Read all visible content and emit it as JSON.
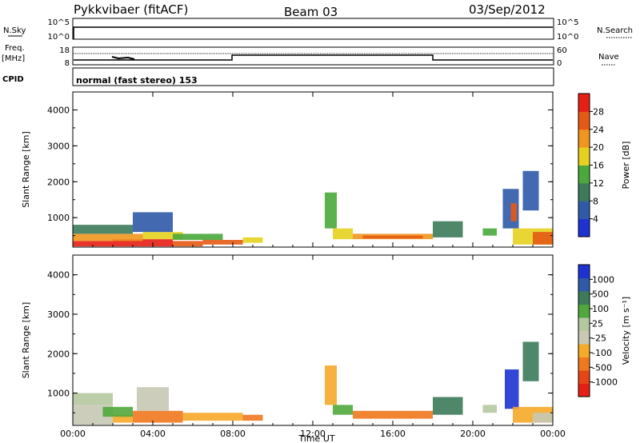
{
  "header": {
    "station": "Pykkvibaer (fitACF)",
    "beam": "Beam 03",
    "date": "03/Sep/2012"
  },
  "top_panels": {
    "nsky_label": "N.Sky",
    "nsearch_label": "N.Search",
    "freq_label_1": "Freq.",
    "freq_label_2": "[MHz]",
    "nave_label": "Nave",
    "cpid_label": "CPID",
    "cpid_text": "normal (fast stereo) 153",
    "noise_left_ticks": [
      "10^5",
      "10^0"
    ],
    "noise_right_ticks": [
      "10^5",
      "10^0"
    ],
    "freq_left_ticks": [
      "18",
      "8"
    ],
    "freq_right_ticks": [
      "60",
      "0"
    ]
  },
  "colors": {
    "power": [
      "#1e32d2",
      "#2f5aa8",
      "#3c7a5a",
      "#4aa83c",
      "#e6d21e",
      "#f0961e",
      "#e65a14",
      "#e61e14"
    ],
    "velocity": [
      "#e61e14",
      "#e64614",
      "#f0781e",
      "#f5aa28",
      "#c8c8b4",
      "#b4c8a0",
      "#50a83c",
      "#3c7a5a",
      "#2f5aa8",
      "#1e32d2"
    ]
  },
  "chart_data": [
    {
      "type": "heatmap",
      "name": "power",
      "ylabel": "Slant Range [km]",
      "xlabel": "",
      "ylim": [
        180,
        4500
      ],
      "xlim": [
        0,
        24
      ],
      "x_ticks": [
        "00:00",
        "04:00",
        "08:00",
        "12:00",
        "16:00",
        "20:00",
        "00:00"
      ],
      "y_ticks": [
        "1000",
        "2000",
        "3000",
        "4000"
      ],
      "colorbar_label": "Power [dB]",
      "colorbar_ticks": [
        "4",
        "8",
        "12",
        "16",
        "20",
        "24",
        "28"
      ],
      "patches": [
        {
          "x0": 0.0,
          "x1": 2.0,
          "y0": 200,
          "y1": 350,
          "c": 7
        },
        {
          "x0": 2.0,
          "x1": 5.0,
          "y0": 200,
          "y1": 400,
          "c": 7
        },
        {
          "x0": 5.0,
          "x1": 6.5,
          "y0": 200,
          "y1": 350,
          "c": 6
        },
        {
          "x0": 6.5,
          "x1": 8.5,
          "y0": 250,
          "y1": 380,
          "c": 6
        },
        {
          "x0": 0.0,
          "x1": 3.5,
          "y0": 350,
          "y1": 550,
          "c": 5
        },
        {
          "x0": 3.5,
          "x1": 5.5,
          "y0": 400,
          "y1": 600,
          "c": 4
        },
        {
          "x0": 0.0,
          "x1": 3.0,
          "y0": 550,
          "y1": 800,
          "c": 2
        },
        {
          "x0": 3.0,
          "x1": 5.0,
          "y0": 600,
          "y1": 1150,
          "c": 1
        },
        {
          "x0": 5.0,
          "x1": 7.5,
          "y0": 380,
          "y1": 550,
          "c": 3
        },
        {
          "x0": 8.5,
          "x1": 9.5,
          "y0": 300,
          "y1": 450,
          "c": 4
        },
        {
          "x0": 12.6,
          "x1": 13.2,
          "y0": 700,
          "y1": 1700,
          "c": 3
        },
        {
          "x0": 13.0,
          "x1": 14.0,
          "y0": 400,
          "y1": 700,
          "c": 4
        },
        {
          "x0": 14.0,
          "x1": 18.0,
          "y0": 400,
          "y1": 550,
          "c": 5
        },
        {
          "x0": 14.5,
          "x1": 17.5,
          "y0": 420,
          "y1": 500,
          "c": 6
        },
        {
          "x0": 18.0,
          "x1": 19.5,
          "y0": 450,
          "y1": 900,
          "c": 2
        },
        {
          "x0": 20.5,
          "x1": 21.2,
          "y0": 500,
          "y1": 700,
          "c": 3
        },
        {
          "x0": 21.5,
          "x1": 22.3,
          "y0": 700,
          "y1": 1800,
          "c": 1
        },
        {
          "x0": 21.9,
          "x1": 22.2,
          "y0": 900,
          "y1": 1400,
          "c": 6
        },
        {
          "x0": 22.5,
          "x1": 23.3,
          "y0": 1200,
          "y1": 2300,
          "c": 1
        },
        {
          "x0": 22.0,
          "x1": 24.0,
          "y0": 250,
          "y1": 700,
          "c": 4
        },
        {
          "x0": 23.0,
          "x1": 24.0,
          "y0": 250,
          "y1": 600,
          "c": 6
        }
      ]
    },
    {
      "type": "heatmap",
      "name": "velocity",
      "ylabel": "Slant Range [km]",
      "xlabel": "Time UT",
      "ylim": [
        180,
        4500
      ],
      "xlim": [
        0,
        24
      ],
      "x_ticks": [
        "00:00",
        "04:00",
        "08:00",
        "12:00",
        "16:00",
        "20:00",
        "00:00"
      ],
      "y_ticks": [
        "1000",
        "2000",
        "3000",
        "4000"
      ],
      "colorbar_label": "Velocity [m s⁻¹]",
      "colorbar_ticks": [
        "-1000",
        "-500",
        "-100",
        "-25",
        "25",
        "100",
        "500",
        "1000"
      ],
      "patches": [
        {
          "x0": 0.0,
          "x1": 2.0,
          "y0": 200,
          "y1": 700,
          "c": 4
        },
        {
          "x0": 0.0,
          "x1": 2.0,
          "y0": 700,
          "y1": 1000,
          "c": 5
        },
        {
          "x0": 2.0,
          "x1": 3.0,
          "y0": 250,
          "y1": 450,
          "c": 3
        },
        {
          "x0": 1.5,
          "x1": 3.0,
          "y0": 400,
          "y1": 650,
          "c": 6
        },
        {
          "x0": 3.0,
          "x1": 5.5,
          "y0": 250,
          "y1": 550,
          "c": 2
        },
        {
          "x0": 3.2,
          "x1": 4.8,
          "y0": 550,
          "y1": 1150,
          "c": 4
        },
        {
          "x0": 5.5,
          "x1": 8.5,
          "y0": 300,
          "y1": 500,
          "c": 3
        },
        {
          "x0": 8.5,
          "x1": 9.5,
          "y0": 300,
          "y1": 450,
          "c": 2
        },
        {
          "x0": 12.6,
          "x1": 13.2,
          "y0": 700,
          "y1": 1700,
          "c": 3
        },
        {
          "x0": 13.0,
          "x1": 14.0,
          "y0": 450,
          "y1": 700,
          "c": 6
        },
        {
          "x0": 14.0,
          "x1": 18.0,
          "y0": 350,
          "y1": 550,
          "c": 2
        },
        {
          "x0": 18.0,
          "x1": 19.5,
          "y0": 450,
          "y1": 900,
          "c": 7
        },
        {
          "x0": 20.5,
          "x1": 21.2,
          "y0": 500,
          "y1": 700,
          "c": 5
        },
        {
          "x0": 21.6,
          "x1": 22.3,
          "y0": 600,
          "y1": 1600,
          "c": 9
        },
        {
          "x0": 22.5,
          "x1": 23.3,
          "y0": 1300,
          "y1": 2300,
          "c": 7
        },
        {
          "x0": 22.0,
          "x1": 24.0,
          "y0": 250,
          "y1": 650,
          "c": 3
        },
        {
          "x0": 23.0,
          "x1": 24.0,
          "y0": 250,
          "y1": 500,
          "c": 4
        }
      ]
    }
  ]
}
